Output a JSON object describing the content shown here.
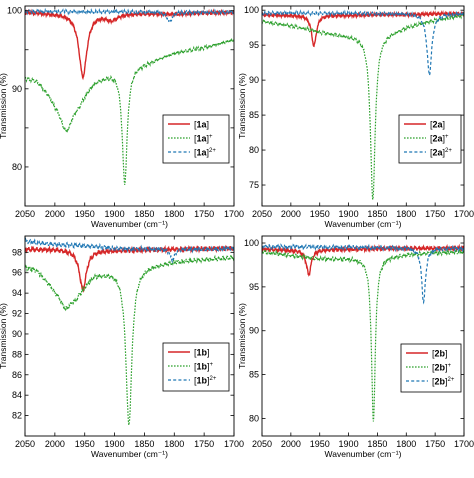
{
  "colors": {
    "neutral": "#d62728",
    "cation": "#2ca02c",
    "dication": "#1f77b4",
    "axis": "#000000"
  },
  "chart_data": [
    {
      "id": "1a",
      "type": "line",
      "xlabel": "Wavenumber (cm⁻¹)",
      "ylabel": "Transmission (%)",
      "xlim": [
        2050,
        1700
      ],
      "ylim": [
        75,
        100.6
      ],
      "xticks": [
        2050,
        2000,
        1950,
        1900,
        1850,
        1800,
        1750,
        1700
      ],
      "yticks": [
        80,
        85,
        90,
        95,
        100
      ],
      "ytick_labels": [
        "80",
        "",
        "90",
        "",
        "100"
      ],
      "ytick_labels_full": [
        "80",
        "85",
        "90",
        "95",
        "100"
      ],
      "legend_position": "lower-right",
      "series": [
        {
          "name": "[1a]",
          "label_base": "1a",
          "label_sup": "",
          "style": "solid",
          "color_key": "neutral",
          "baseline": [
            [
              2050,
              99.8
            ],
            [
              2000,
              99.7
            ],
            [
              1900,
              99.7
            ],
            [
              1800,
              99.6
            ],
            [
              1700,
              99.8
            ]
          ],
          "peaks": [
            {
              "center": 1953,
              "depth": 8.1,
              "width": 8
            },
            {
              "center": 1905,
              "depth": 0.8,
              "width": 12
            }
          ]
        },
        {
          "name": "[1a]⁺",
          "label_base": "1a",
          "label_sup": "+",
          "style": "dotted",
          "color_key": "cation",
          "baseline": [
            [
              2050,
              91.5
            ],
            [
              2030,
              91.2
            ],
            [
              2000,
              89.0
            ],
            [
              1960,
              88.7
            ],
            [
              1935,
              91.0
            ],
            [
              1900,
              92.3
            ],
            [
              1850,
              93.3
            ],
            [
              1800,
              94.6
            ],
            [
              1750,
              95.3
            ],
            [
              1700,
              96.3
            ]
          ],
          "peaks": [
            {
              "center": 1981,
              "depth": 4.2,
              "width": 13
            },
            {
              "center": 1883,
              "depth": 14.7,
              "width": 5
            }
          ]
        },
        {
          "name": "[1a]²⁺",
          "label_base": "1a",
          "label_sup": "2+",
          "style": "dashed",
          "color_key": "dication",
          "baseline": [
            [
              2050,
              99.9
            ],
            [
              1700,
              99.8
            ]
          ],
          "peaks": [
            {
              "center": 1808,
              "depth": 1.3,
              "width": 5
            }
          ]
        }
      ]
    },
    {
      "id": "2a",
      "type": "line",
      "xlabel": "Wavenumber (cm⁻¹)",
      "ylabel": "Transmission (%)",
      "xlim": [
        2050,
        1700
      ],
      "ylim": [
        72,
        100.6
      ],
      "xticks": [
        2050,
        2000,
        1950,
        1900,
        1850,
        1800,
        1750,
        1700
      ],
      "yticks": [
        75,
        80,
        85,
        90,
        95,
        100
      ],
      "ytick_labels": [
        "75",
        "80",
        "85",
        "90",
        "95",
        "100"
      ],
      "legend_position": "lower-right",
      "series": [
        {
          "name": "[2a]",
          "label_base": "2a",
          "label_sup": "",
          "style": "solid",
          "color_key": "neutral",
          "baseline": [
            [
              2050,
              99.3
            ],
            [
              2000,
              99.3
            ],
            [
              1900,
              99.3
            ],
            [
              1800,
              99.4
            ],
            [
              1700,
              99.5
            ]
          ],
          "peaks": [
            {
              "center": 1960,
              "depth": 4.4,
              "width": 5
            }
          ]
        },
        {
          "name": "[2a]⁺",
          "label_base": "2a",
          "label_sup": "+",
          "style": "dotted",
          "color_key": "cation",
          "baseline": [
            [
              2050,
              98.4
            ],
            [
              2000,
              97.8
            ],
            [
              1950,
              96.9
            ],
            [
              1900,
              96.4
            ],
            [
              1850,
              96.3
            ],
            [
              1800,
              97.6
            ],
            [
              1750,
              98.6
            ],
            [
              1700,
              99.3
            ]
          ],
          "peaks": [
            {
              "center": 1858,
              "depth": 23.3,
              "width": 5
            }
          ]
        },
        {
          "name": "[2a]²⁺",
          "label_base": "2a",
          "label_sup": "2+",
          "style": "dashed",
          "color_key": "dication",
          "baseline": [
            [
              2050,
              99.6
            ],
            [
              1700,
              99.5
            ]
          ],
          "peaks": [
            {
              "center": 1760,
              "depth": 8.7,
              "width": 5
            }
          ]
        }
      ]
    },
    {
      "id": "1b",
      "type": "line",
      "xlabel": "Wavenumber (cm⁻¹)",
      "ylabel": "Transmission (%)",
      "xlim": [
        2050,
        1700
      ],
      "ylim": [
        80,
        99.6
      ],
      "xticks": [
        2050,
        2000,
        1950,
        1900,
        1850,
        1800,
        1750,
        1700
      ],
      "yticks": [
        82,
        84,
        86,
        88,
        90,
        92,
        94,
        96,
        98
      ],
      "ytick_labels": [
        "82",
        "84",
        "86",
        "88",
        "90",
        "92",
        "94",
        "96",
        "98"
      ],
      "legend_position": "lower-right",
      "series": [
        {
          "name": "[1b]",
          "label_base": "1b",
          "label_sup": "",
          "style": "solid",
          "color_key": "neutral",
          "baseline": [
            [
              2050,
              98.3
            ],
            [
              2000,
              98.3
            ],
            [
              1900,
              98.2
            ],
            [
              1800,
              98.3
            ],
            [
              1700,
              98.4
            ]
          ],
          "peaks": [
            {
              "center": 1953,
              "depth": 3.9,
              "width": 7
            }
          ]
        },
        {
          "name": "[1b]⁺",
          "label_base": "1b",
          "label_sup": "+",
          "style": "dotted",
          "color_key": "cation",
          "baseline": [
            [
              2050,
              96.6
            ],
            [
              2030,
              96.3
            ],
            [
              2000,
              94.5
            ],
            [
              1965,
              93.8
            ],
            [
              1935,
              95.8
            ],
            [
              1900,
              96.3
            ],
            [
              1850,
              96.7
            ],
            [
              1800,
              97.1
            ],
            [
              1750,
              97.3
            ],
            [
              1700,
              97.5
            ]
          ],
          "peaks": [
            {
              "center": 1982,
              "depth": 1.6,
              "width": 11
            },
            {
              "center": 1876,
              "depth": 15.4,
              "width": 6
            }
          ]
        },
        {
          "name": "[1b]²⁺",
          "label_base": "1b",
          "label_sup": "2+",
          "style": "dashed",
          "color_key": "dication",
          "baseline": [
            [
              2050,
              99.1
            ],
            [
              2000,
              98.8
            ],
            [
              1900,
              98.4
            ],
            [
              1800,
              98.3
            ],
            [
              1700,
              98.4
            ]
          ],
          "peaks": [
            {
              "center": 1803,
              "depth": 1.0,
              "width": 5
            }
          ]
        }
      ]
    },
    {
      "id": "2b",
      "type": "line",
      "xlabel": "Wavenumber (cm⁻¹)",
      "ylabel": "Transmission (%)",
      "xlim": [
        2050,
        1700
      ],
      "ylim": [
        78,
        100.8
      ],
      "xticks": [
        2050,
        2000,
        1950,
        1900,
        1850,
        1800,
        1750,
        1700
      ],
      "yticks": [
        80,
        85,
        90,
        95,
        100
      ],
      "ytick_labels": [
        "80",
        "85",
        "90",
        "95",
        "100"
      ],
      "legend_position": "lower-right",
      "series": [
        {
          "name": "[2b]",
          "label_base": "2b",
          "label_sup": "",
          "style": "solid",
          "color_key": "neutral",
          "baseline": [
            [
              2050,
              99.3
            ],
            [
              2000,
              99.2
            ],
            [
              1900,
              99.3
            ],
            [
              1800,
              99.4
            ],
            [
              1700,
              99.4
            ]
          ],
          "peaks": [
            {
              "center": 1969,
              "depth": 2.8,
              "width": 5
            }
          ]
        },
        {
          "name": "[2b]⁺",
          "label_base": "2b",
          "label_sup": "+",
          "style": "dotted",
          "color_key": "cation",
          "baseline": [
            [
              2050,
              99.0
            ],
            [
              2000,
              98.6
            ],
            [
              1950,
              98.2
            ],
            [
              1900,
              98.3
            ],
            [
              1850,
              98.4
            ],
            [
              1800,
              98.7
            ],
            [
              1750,
              98.9
            ],
            [
              1700,
              99.0
            ]
          ],
          "peaks": [
            {
              "center": 1857,
              "depth": 18.6,
              "width": 4
            }
          ]
        },
        {
          "name": "[2b]²⁺",
          "label_base": "2b",
          "label_sup": "2+",
          "style": "dashed",
          "color_key": "dication",
          "baseline": [
            [
              2050,
              99.6
            ],
            [
              1700,
              99.4
            ]
          ],
          "peaks": [
            {
              "center": 1770,
              "depth": 6.2,
              "width": 4
            }
          ]
        }
      ]
    }
  ]
}
